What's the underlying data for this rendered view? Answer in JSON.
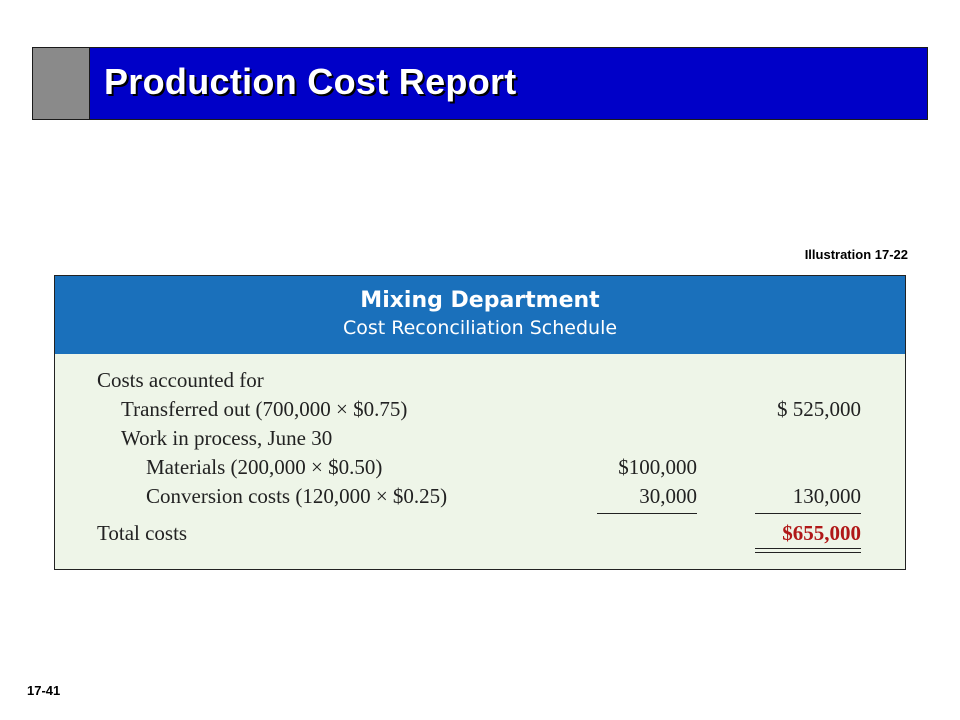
{
  "slide": {
    "title": "Production Cost Report",
    "illustration": "Illustration 17-22",
    "number": "17-41"
  },
  "schedule": {
    "department": "Mixing Department",
    "subtitle": "Cost Reconciliation Schedule",
    "rows": [
      {
        "label": "Costs accounted for",
        "col1": "",
        "col2": ""
      },
      {
        "label": "Transferred out (700,000 × $0.75)",
        "col1": "",
        "col2": "$ 525,000"
      },
      {
        "label": "Work in process, June 30",
        "col1": "",
        "col2": ""
      },
      {
        "label": "Materials (200,000 × $0.50)",
        "col1": "$100,000",
        "col2": ""
      },
      {
        "label": "Conversion costs (120,000 × $0.25)",
        "col1": "30,000",
        "col2": "130,000"
      }
    ],
    "total": {
      "label": "Total costs",
      "value": "$655,000"
    }
  },
  "colors": {
    "title_bar": "#0000c8",
    "title_accent": "#8a8a8a",
    "schedule_header": "#1a70bb",
    "schedule_body": "#eef5e8",
    "total_value": "#b01818"
  }
}
